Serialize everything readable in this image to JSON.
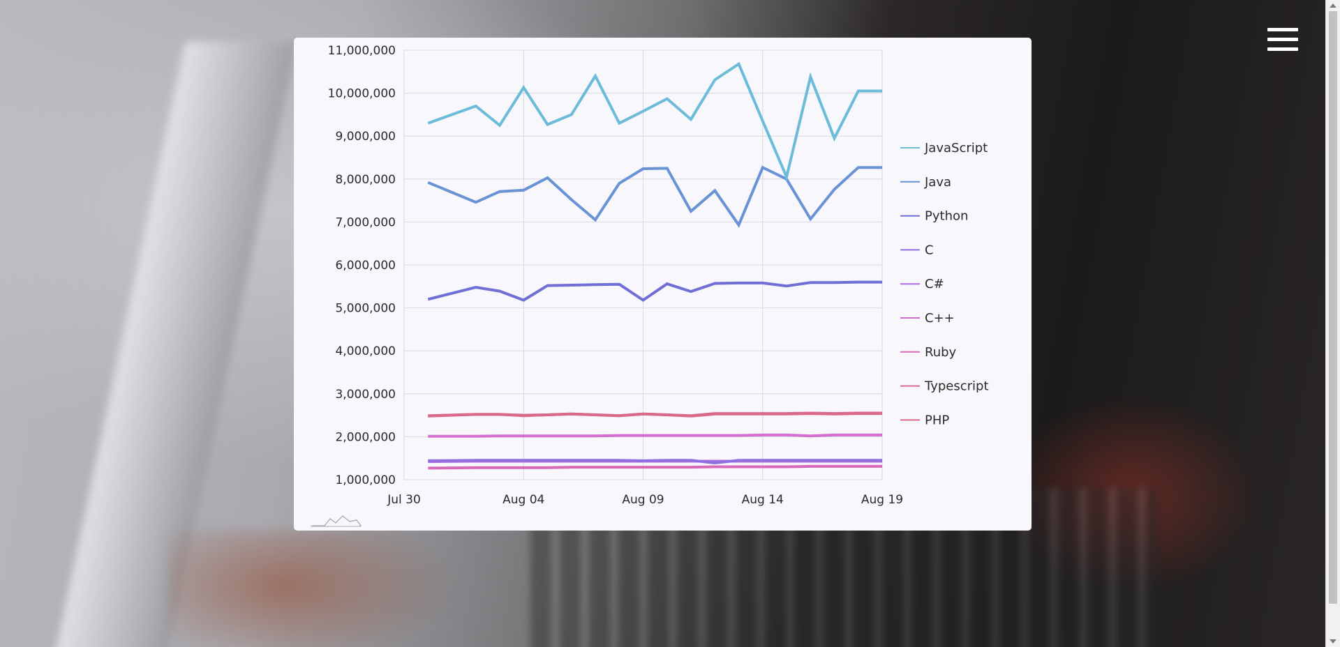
{
  "navigation": {
    "menu_icon": "hamburger-menu-icon"
  },
  "chart_logo": {
    "icon": "mountain-logo-icon"
  },
  "chart_data": {
    "type": "line",
    "title": "",
    "xlabel": "",
    "ylabel": "",
    "ylim": [
      1000000,
      11000000
    ],
    "yticks": [
      1000000,
      2000000,
      3000000,
      4000000,
      5000000,
      6000000,
      7000000,
      8000000,
      9000000,
      10000000,
      11000000
    ],
    "ytick_labels": [
      "1,000,000",
      "2,000,000",
      "3,000,000",
      "4,000,000",
      "5,000,000",
      "6,000,000",
      "7,000,000",
      "8,000,000",
      "9,000,000",
      "10,000,000",
      "11,000,000"
    ],
    "xlim": [
      "2023-07-30",
      "2023-08-19"
    ],
    "xtick_labels": [
      "Jul 30",
      "Aug 04",
      "Aug 09",
      "Aug 14",
      "Aug 19"
    ],
    "grid": true,
    "legend_position": "right",
    "x": [
      "Jul 31",
      "Aug 02",
      "Aug 03",
      "Aug 04",
      "Aug 05",
      "Aug 06",
      "Aug 07",
      "Aug 08",
      "Aug 09",
      "Aug 10",
      "Aug 11",
      "Aug 12",
      "Aug 13",
      "Aug 14",
      "Aug 15",
      "Aug 16",
      "Aug 17",
      "Aug 18",
      "Aug 19"
    ],
    "series": [
      {
        "name": "JavaScript",
        "color": "#6cbcd9",
        "values": [
          9300000,
          9700000,
          9250000,
          10130000,
          9270000,
          9500000,
          10400000,
          9300000,
          9580000,
          9870000,
          9390000,
          10310000,
          10680000,
          9350000,
          8050000,
          10380000,
          8950000,
          10050000,
          10050000
        ]
      },
      {
        "name": "Java",
        "color": "#6a93d6",
        "values": [
          7920000,
          7460000,
          7710000,
          7740000,
          8030000,
          7520000,
          7050000,
          7900000,
          8240000,
          8250000,
          7250000,
          7730000,
          6930000,
          8270000,
          8000000,
          7070000,
          7760000,
          8270000,
          8270000
        ]
      },
      {
        "name": "Python",
        "color": "#6f6fd6",
        "values": [
          5200000,
          5480000,
          5390000,
          5180000,
          5520000,
          5530000,
          5540000,
          5550000,
          5180000,
          5560000,
          5380000,
          5570000,
          5580000,
          5580000,
          5510000,
          5590000,
          5590000,
          5600000,
          5600000
        ]
      },
      {
        "name": "C",
        "color": "#8f6fe0",
        "values": [
          1440000,
          1450000,
          1450000,
          1450000,
          1450000,
          1450000,
          1450000,
          1450000,
          1440000,
          1450000,
          1450000,
          1390000,
          1450000,
          1450000,
          1450000,
          1450000,
          1450000,
          1450000,
          1450000
        ]
      },
      {
        "name": "C#",
        "color": "#b36ee0",
        "values": [
          1420000,
          1430000,
          1430000,
          1430000,
          1430000,
          1430000,
          1430000,
          1430000,
          1430000,
          1430000,
          1430000,
          1430000,
          1430000,
          1430000,
          1430000,
          1430000,
          1430000,
          1430000,
          1430000
        ]
      },
      {
        "name": "C++",
        "color": "#d46fd0",
        "values": [
          2010000,
          2010000,
          2020000,
          2020000,
          2020000,
          2020000,
          2020000,
          2030000,
          2030000,
          2030000,
          2030000,
          2030000,
          2030000,
          2040000,
          2040000,
          2020000,
          2040000,
          2040000,
          2040000
        ]
      },
      {
        "name": "Ruby",
        "color": "#d968b8",
        "values": [
          1270000,
          1280000,
          1280000,
          1280000,
          1280000,
          1290000,
          1290000,
          1290000,
          1290000,
          1290000,
          1290000,
          1300000,
          1300000,
          1300000,
          1300000,
          1310000,
          1310000,
          1310000,
          1310000
        ]
      },
      {
        "name": "Typescript",
        "color": "#d9689a",
        "values": [
          2480000,
          2520000,
          2520000,
          2490000,
          2510000,
          2530000,
          2510000,
          2490000,
          2530000,
          2510000,
          2490000,
          2540000,
          2540000,
          2540000,
          2540000,
          2550000,
          2540000,
          2550000,
          2550000
        ]
      },
      {
        "name": "PHP",
        "color": "#d96889",
        "values": [
          2490000,
          2520000,
          2520000,
          2500000,
          2510000,
          2530000,
          2510000,
          2490000,
          2530000,
          2510000,
          2480000,
          2530000,
          2530000,
          2530000,
          2530000,
          2540000,
          2530000,
          2540000,
          2540000
        ]
      }
    ]
  }
}
